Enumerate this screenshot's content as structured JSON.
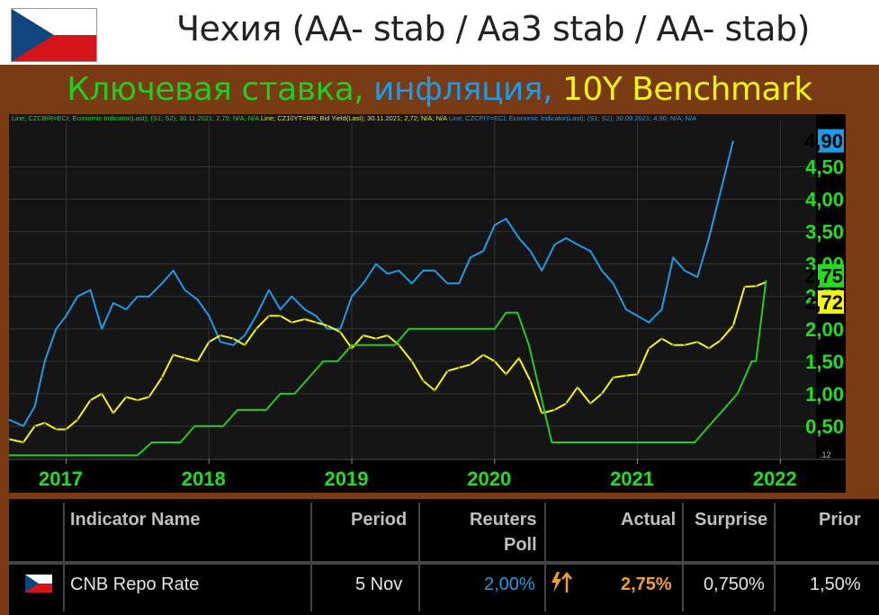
{
  "header": {
    "title": "Чехия (AA- stab / Aa3 stab / AA- stab)"
  },
  "subtitle": {
    "part1": "Ключевая ставка,",
    "part2": " инфляция,",
    "part3": " 10Y Benchmark",
    "color1": "#22cc22",
    "color2": "#1e9be6",
    "color3": "#f5f511"
  },
  "legend_text": {
    "l1": "Line; CZCBIR=ECI; Economic Indicator(Last); (S1; S2); 30.11.2021; 2,75; N/A; N/A",
    "l2": "Line; CZ10YT=RR; Bid Yield(Last); 30.11.2021; 2,72; N/A; N/A",
    "l3": "Line; CZCPIY=ECI; Economic Indicator(Last); (S1; S2); 30.09.2021; 4,90; N/A; N/A"
  },
  "chart_data": {
    "type": "line",
    "x_ticks": [
      "2017",
      "2018",
      "2019",
      "2020",
      "2021",
      "2022"
    ],
    "y_ticks": [
      "0,50",
      "1,00",
      "1,50",
      "2,00",
      "2,50",
      "3,00",
      "3,50",
      "4,00",
      "4,50"
    ],
    "ylim": [
      0,
      5.2
    ],
    "xlim": [
      2016.6,
      2022.25
    ],
    "axis_corner_label": ".12",
    "last_value_tags": [
      {
        "text": "4,90",
        "value": 4.9,
        "series": "inflation"
      },
      {
        "text": "2,75",
        "value": 2.75,
        "series": "rate"
      },
      {
        "text": "2,72",
        "value": 2.72,
        "series": "bond"
      }
    ],
    "series": [
      {
        "id": "inflation",
        "color": "#1e9be6",
        "x": [
          2016.6,
          2016.7,
          2016.78,
          2016.85,
          2016.93,
          2017.0,
          2017.08,
          2017.17,
          2017.25,
          2017.33,
          2017.42,
          2017.5,
          2017.58,
          2017.67,
          2017.75,
          2017.83,
          2017.92,
          2018.0,
          2018.08,
          2018.17,
          2018.25,
          2018.33,
          2018.42,
          2018.5,
          2018.58,
          2018.67,
          2018.75,
          2018.83,
          2018.92,
          2019.0,
          2019.08,
          2019.17,
          2019.25,
          2019.33,
          2019.42,
          2019.5,
          2019.58,
          2019.67,
          2019.75,
          2019.83,
          2019.92,
          2020.0,
          2020.08,
          2020.17,
          2020.25,
          2020.33,
          2020.42,
          2020.5,
          2020.58,
          2020.67,
          2020.75,
          2020.83,
          2020.92,
          2021.0,
          2021.08,
          2021.17,
          2021.25,
          2021.33,
          2021.42,
          2021.5,
          2021.58,
          2021.67
        ],
        "y": [
          0.6,
          0.5,
          0.8,
          1.5,
          2.0,
          2.2,
          2.5,
          2.6,
          2.0,
          2.4,
          2.3,
          2.5,
          2.5,
          2.7,
          2.9,
          2.6,
          2.45,
          2.2,
          1.8,
          1.75,
          1.9,
          2.2,
          2.6,
          2.3,
          2.5,
          2.3,
          2.2,
          2.0,
          2.0,
          2.5,
          2.7,
          3.0,
          2.85,
          2.9,
          2.7,
          2.9,
          2.9,
          2.7,
          2.7,
          3.1,
          3.2,
          3.6,
          3.7,
          3.4,
          3.2,
          2.9,
          3.3,
          3.4,
          3.3,
          3.2,
          2.9,
          2.7,
          2.3,
          2.2,
          2.1,
          2.3,
          3.1,
          2.9,
          2.8,
          3.4,
          4.1,
          4.9
        ]
      },
      {
        "id": "bond",
        "color": "#f5f511",
        "x": [
          2016.6,
          2016.7,
          2016.78,
          2016.85,
          2016.93,
          2017.0,
          2017.08,
          2017.17,
          2017.25,
          2017.33,
          2017.42,
          2017.5,
          2017.58,
          2017.67,
          2017.75,
          2017.83,
          2017.92,
          2018.0,
          2018.08,
          2018.17,
          2018.25,
          2018.33,
          2018.42,
          2018.5,
          2018.58,
          2018.67,
          2018.75,
          2018.83,
          2018.92,
          2019.0,
          2019.08,
          2019.17,
          2019.25,
          2019.33,
          2019.42,
          2019.5,
          2019.58,
          2019.67,
          2019.75,
          2019.83,
          2019.92,
          2020.0,
          2020.08,
          2020.17,
          2020.25,
          2020.33,
          2020.42,
          2020.5,
          2020.58,
          2020.67,
          2020.75,
          2020.83,
          2020.92,
          2021.0,
          2021.08,
          2021.17,
          2021.25,
          2021.33,
          2021.42,
          2021.5,
          2021.58,
          2021.67,
          2021.75,
          2021.83,
          2021.9
        ],
        "y": [
          0.3,
          0.25,
          0.5,
          0.55,
          0.45,
          0.45,
          0.6,
          0.9,
          1.0,
          0.7,
          0.95,
          0.9,
          0.95,
          1.25,
          1.6,
          1.55,
          1.5,
          1.8,
          1.9,
          1.85,
          1.75,
          2.0,
          2.2,
          2.2,
          2.1,
          2.15,
          2.1,
          2.05,
          1.95,
          1.7,
          1.9,
          1.85,
          1.9,
          1.75,
          1.5,
          1.2,
          1.05,
          1.35,
          1.4,
          1.45,
          1.6,
          1.5,
          1.3,
          1.55,
          1.2,
          0.7,
          0.75,
          0.85,
          1.1,
          0.85,
          1.0,
          1.25,
          1.28,
          1.3,
          1.7,
          1.85,
          1.75,
          1.75,
          1.8,
          1.7,
          1.82,
          2.05,
          2.65,
          2.66,
          2.72
        ]
      },
      {
        "id": "rate",
        "color": "#22cc22",
        "x": [
          2016.6,
          2017.5,
          2017.6,
          2017.7,
          2017.8,
          2017.9,
          2018.0,
          2018.1,
          2018.2,
          2018.3,
          2018.4,
          2018.5,
          2018.6,
          2018.7,
          2018.8,
          2018.9,
          2019.0,
          2019.1,
          2019.2,
          2019.3,
          2019.4,
          2019.5,
          2019.6,
          2019.7,
          2019.8,
          2019.9,
          2020.0,
          2020.08,
          2020.16,
          2020.24,
          2020.32,
          2020.4,
          2021.4,
          2021.5,
          2021.6,
          2021.7,
          2021.8,
          2021.83,
          2021.9
        ],
        "y": [
          0.05,
          0.05,
          0.25,
          0.25,
          0.25,
          0.5,
          0.5,
          0.5,
          0.75,
          0.75,
          0.75,
          1.0,
          1.0,
          1.25,
          1.5,
          1.5,
          1.75,
          1.75,
          1.75,
          1.75,
          2.0,
          2.0,
          2.0,
          2.0,
          2.0,
          2.0,
          2.0,
          2.25,
          2.25,
          1.75,
          1.0,
          0.25,
          0.25,
          0.5,
          0.75,
          1.0,
          1.5,
          1.5,
          2.75
        ]
      }
    ]
  },
  "table": {
    "headers": {
      "name": "Indicator Name",
      "period": "Period",
      "reuters": "Reuters",
      "reuters2": "Poll",
      "actual": "Actual",
      "surprise": "Surprise",
      "prior": "Prior"
    },
    "row": {
      "name": "CNB Repo Rate",
      "period": "5 Nov",
      "poll": "2,00%",
      "actual": "2,75%",
      "surprise": "0,750%",
      "prior": "1,50%"
    }
  }
}
